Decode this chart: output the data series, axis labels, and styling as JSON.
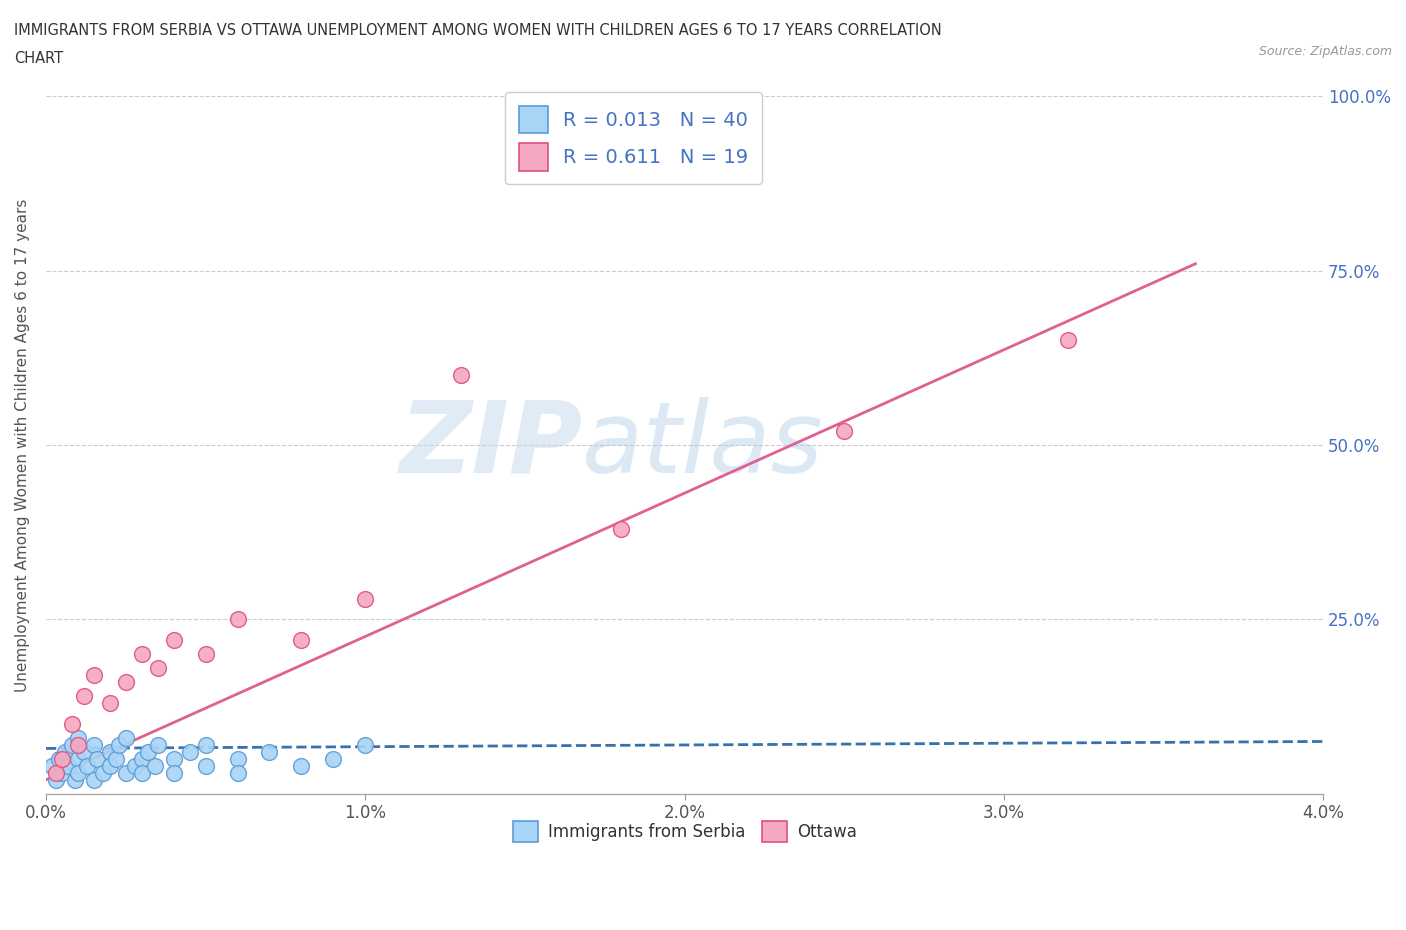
{
  "title_line1": "IMMIGRANTS FROM SERBIA VS OTTAWA UNEMPLOYMENT AMONG WOMEN WITH CHILDREN AGES 6 TO 17 YEARS CORRELATION",
  "title_line2": "CHART",
  "source": "Source: ZipAtlas.com",
  "ylabel": "Unemployment Among Women with Children Ages 6 to 17 years",
  "xlim": [
    0.0,
    0.04
  ],
  "ylim": [
    0.0,
    1.0
  ],
  "xtick_labels": [
    "0.0%",
    "1.0%",
    "2.0%",
    "3.0%",
    "4.0%"
  ],
  "xtick_values": [
    0.0,
    0.01,
    0.02,
    0.03,
    0.04
  ],
  "ytick_labels": [
    "25.0%",
    "50.0%",
    "75.0%",
    "100.0%"
  ],
  "ytick_values": [
    0.25,
    0.5,
    0.75,
    1.0
  ],
  "serbia_color": "#A8D4F5",
  "serbia_edge_color": "#5B9BD5",
  "ottawa_color": "#F5A8C0",
  "ottawa_edge_color": "#E05080",
  "trendline_serbia_color": "#3A6FB0",
  "trendline_ottawa_color": "#E06090",
  "R_serbia": 0.013,
  "N_serbia": 40,
  "R_ottawa": 0.611,
  "N_ottawa": 19,
  "legend_label_serbia": "Immigrants from Serbia",
  "legend_label_ottawa": "Ottawa",
  "watermark_zip": "ZIP",
  "watermark_atlas": "atlas",
  "serbia_x": [
    0.0002,
    0.0003,
    0.0004,
    0.0005,
    0.0006,
    0.0007,
    0.0008,
    0.0009,
    0.001,
    0.001,
    0.001,
    0.0012,
    0.0013,
    0.0015,
    0.0015,
    0.0016,
    0.0018,
    0.002,
    0.002,
    0.0022,
    0.0023,
    0.0025,
    0.0025,
    0.0028,
    0.003,
    0.003,
    0.0032,
    0.0034,
    0.0035,
    0.004,
    0.004,
    0.0045,
    0.005,
    0.005,
    0.006,
    0.006,
    0.007,
    0.008,
    0.009,
    0.01
  ],
  "serbia_y": [
    0.04,
    0.02,
    0.05,
    0.03,
    0.06,
    0.04,
    0.07,
    0.02,
    0.05,
    0.08,
    0.03,
    0.06,
    0.04,
    0.07,
    0.02,
    0.05,
    0.03,
    0.06,
    0.04,
    0.05,
    0.07,
    0.03,
    0.08,
    0.04,
    0.05,
    0.03,
    0.06,
    0.04,
    0.07,
    0.05,
    0.03,
    0.06,
    0.04,
    0.07,
    0.05,
    0.03,
    0.06,
    0.04,
    0.05,
    0.07
  ],
  "ottawa_x": [
    0.0003,
    0.0005,
    0.0008,
    0.001,
    0.0012,
    0.0015,
    0.002,
    0.0025,
    0.003,
    0.0035,
    0.004,
    0.005,
    0.006,
    0.008,
    0.01,
    0.013,
    0.018,
    0.025,
    0.032
  ],
  "ottawa_y": [
    0.03,
    0.05,
    0.1,
    0.07,
    0.14,
    0.17,
    0.13,
    0.16,
    0.2,
    0.18,
    0.22,
    0.2,
    0.25,
    0.22,
    0.28,
    0.6,
    0.38,
    0.52,
    0.65
  ],
  "grid_color": "#CCCCCC",
  "background_color": "#FFFFFF"
}
